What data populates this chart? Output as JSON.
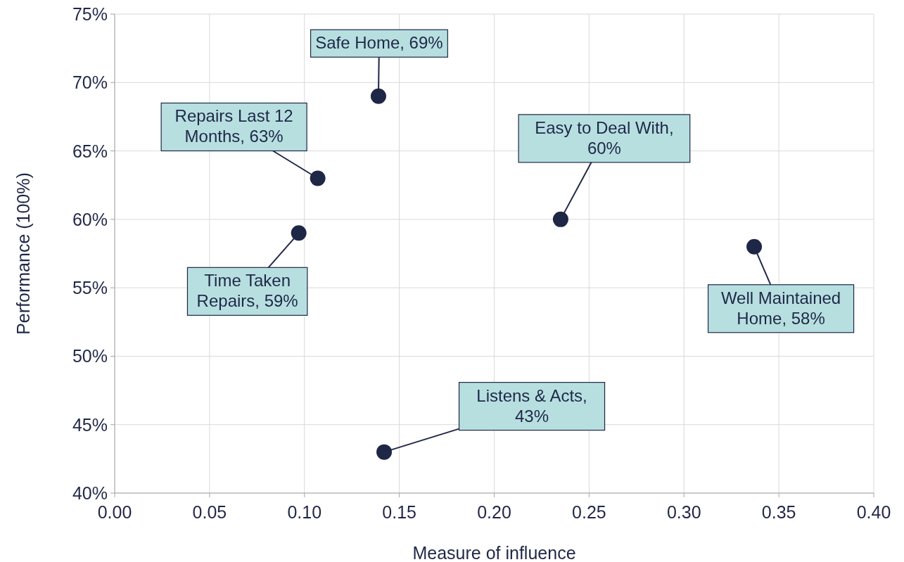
{
  "chart_data": {
    "type": "scatter",
    "xlabel": "Measure of influence",
    "ylabel": "Performance (100%)",
    "x": [
      0.139,
      0.107,
      0.097,
      0.235,
      0.337,
      0.142
    ],
    "values": [
      69,
      63,
      59,
      60,
      58,
      43
    ],
    "color": "#1f2747",
    "marker": "circle",
    "grid": true,
    "xlim": [
      0,
      0.4
    ],
    "ylim": [
      40,
      75
    ],
    "xticks": [
      {
        "value": 0,
        "label": "0.00"
      },
      {
        "value": 0.05,
        "label": "0.05"
      },
      {
        "value": 0.1,
        "label": "0.10"
      },
      {
        "value": 0.15,
        "label": "0.15"
      },
      {
        "value": 0.2,
        "label": "0.20"
      },
      {
        "value": 0.25,
        "label": "0.25"
      },
      {
        "value": 0.3,
        "label": "0.30"
      },
      {
        "value": 0.35,
        "label": "0.35"
      },
      {
        "value": 0.4,
        "label": "0.40"
      }
    ],
    "yticks": [
      {
        "value": 40,
        "label": "40%"
      },
      {
        "value": 45,
        "label": "45%"
      },
      {
        "value": 50,
        "label": "50%"
      },
      {
        "value": 55,
        "label": "55%"
      },
      {
        "value": 60,
        "label": "60%"
      },
      {
        "value": 65,
        "label": "65%"
      },
      {
        "value": 70,
        "label": "70%"
      },
      {
        "value": 75,
        "label": "75%"
      }
    ],
    "annotations": [
      {
        "text": "Safe Home, 69%",
        "x": 0.139,
        "y": 69
      },
      {
        "text": "Repairs Last 12 Months, 63%",
        "x": 0.107,
        "y": 63
      },
      {
        "text": "Time Taken Repairs, 59%",
        "x": 0.097,
        "y": 59
      },
      {
        "text": "Easy to Deal With, 60%",
        "x": 0.235,
        "y": 60
      },
      {
        "text": "Well Maintained Home, 58%",
        "x": 0.337,
        "y": 58
      },
      {
        "text": "Listens & Acts, 43%",
        "x": 0.142,
        "y": 43
      }
    ]
  }
}
